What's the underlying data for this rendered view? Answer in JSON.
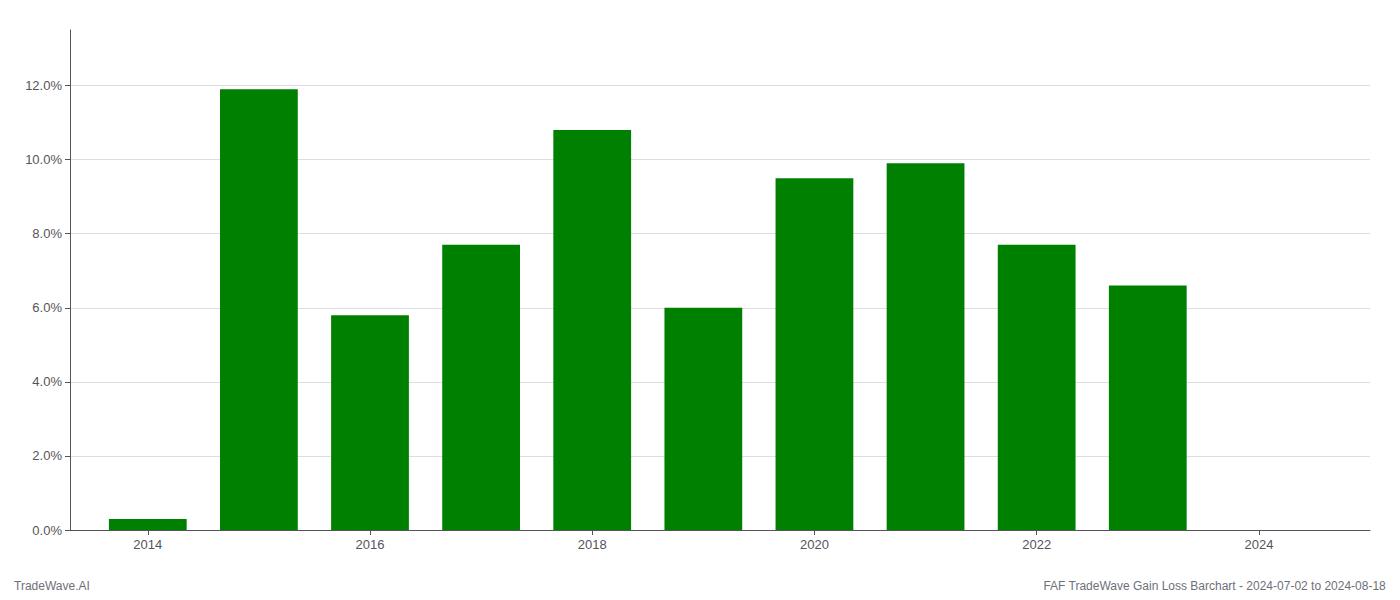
{
  "chart_data": {
    "type": "bar",
    "x": [
      2014,
      2015,
      2016,
      2017,
      2018,
      2019,
      2020,
      2021,
      2022,
      2023
    ],
    "values": [
      0.003,
      0.119,
      0.058,
      0.077,
      0.108,
      0.06,
      0.095,
      0.099,
      0.077,
      0.066
    ],
    "color": "#008000",
    "xlim": [
      2013.3,
      2025.0
    ],
    "xticks": [
      2014,
      2016,
      2018,
      2020,
      2022,
      2024
    ],
    "ylim": [
      0,
      0.135
    ],
    "yticks": [
      {
        "value": 0.0,
        "label": "0.0%"
      },
      {
        "value": 0.02,
        "label": "2.0%"
      },
      {
        "value": 0.04,
        "label": "4.0%"
      },
      {
        "value": 0.06,
        "label": "6.0%"
      },
      {
        "value": 0.08,
        "label": "8.0%"
      },
      {
        "value": 0.1,
        "label": "10.0%"
      },
      {
        "value": 0.12,
        "label": "12.0%"
      }
    ],
    "grid": true,
    "annotations": [
      "TradeWave.AI",
      "FAF TradeWave Gain Loss Barchart - 2024-07-02 to 2024-08-18"
    ]
  }
}
